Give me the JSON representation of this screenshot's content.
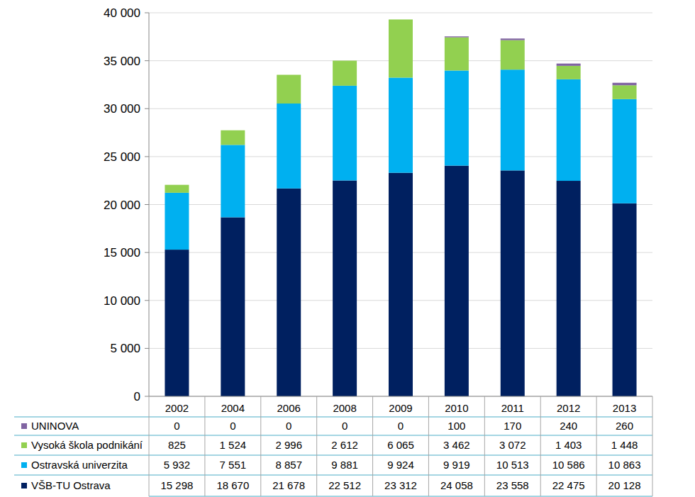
{
  "chart_data": {
    "type": "bar",
    "stacked": true,
    "grid": true,
    "categories": [
      "2002",
      "2004",
      "2006",
      "2008",
      "2009",
      "2010",
      "2011",
      "2012",
      "2013"
    ],
    "series": [
      {
        "name": "VŠB-TU Ostrava",
        "color": "#002060",
        "values": [
          15298,
          18670,
          21678,
          22512,
          23312,
          24058,
          23558,
          22475,
          20128
        ],
        "value_labels": [
          "15 298",
          "18 670",
          "21 678",
          "22 512",
          "23 312",
          "24 058",
          "23 558",
          "22 475",
          "20 128"
        ]
      },
      {
        "name": "Ostravská univerzita",
        "color": "#00B0F0",
        "values": [
          5932,
          7551,
          8857,
          9881,
          9924,
          9919,
          10513,
          10586,
          10863
        ],
        "value_labels": [
          "5 932",
          "7 551",
          "8 857",
          "9 881",
          "9 924",
          "9 919",
          "10 513",
          "10 586",
          "10 863"
        ]
      },
      {
        "name": "Vysoká škola podnikání",
        "color": "#92D050",
        "values": [
          825,
          1524,
          2996,
          2612,
          6065,
          3462,
          3072,
          1403,
          1448
        ],
        "value_labels": [
          "825",
          "1 524",
          "2 996",
          "2 612",
          "6 065",
          "3 462",
          "3 072",
          "1 403",
          "1 448"
        ]
      },
      {
        "name": "UNINOVA",
        "color": "#8064A2",
        "values": [
          0,
          0,
          0,
          0,
          0,
          100,
          170,
          240,
          260
        ],
        "value_labels": [
          "0",
          "0",
          "0",
          "0",
          "0",
          "100",
          "170",
          "240",
          "260"
        ]
      }
    ],
    "ylim": [
      0,
      40000
    ],
    "yticks": [
      0,
      {
        "value": 5000,
        "label": "5 000"
      },
      {
        "value": 10000,
        "label": "10 000"
      },
      {
        "value": 15000,
        "label": "15 000"
      },
      {
        "value": 20000,
        "label": "20 000"
      },
      {
        "value": 25000,
        "label": "25 000"
      },
      {
        "value": 30000,
        "label": "30 000"
      },
      {
        "value": 35000,
        "label": "35 000"
      },
      {
        "value": 40000,
        "label": "40 000"
      }
    ]
  }
}
